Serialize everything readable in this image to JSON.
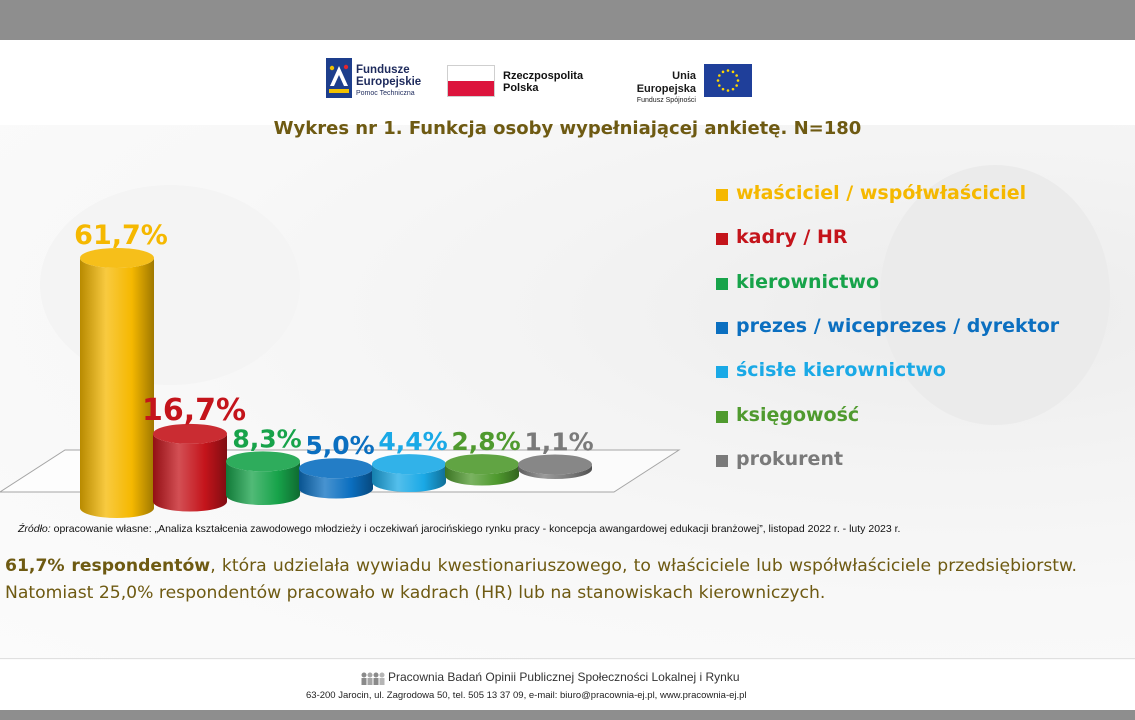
{
  "logos": {
    "fe": [
      "Fundusze",
      "Europejskie",
      "Pomoc Techniczna"
    ],
    "pl": [
      "Rzeczpospolita",
      "Polska"
    ],
    "eu": [
      "Unia Europejska",
      "Fundusz Spójności"
    ]
  },
  "chart_data": {
    "type": "bar",
    "title": "Wykres nr 1. Funkcja osoby wypełniającej ankietę. N=180",
    "categories": [
      "właściciel / współwłaściciel",
      "kadry / HR",
      "kierownictwo",
      "prezes / wiceprezes / dyrektor",
      "ścisłe kierownictwo",
      "księgowość",
      "prokurent"
    ],
    "values": [
      61.7,
      16.7,
      8.3,
      5.0,
      4.4,
      2.8,
      1.1
    ],
    "data_labels": [
      "61,7%",
      "16,7%",
      "8,3%",
      "5,0%",
      "4,4%",
      "2,8%",
      "1,1%"
    ],
    "colors": [
      "#f5b800",
      "#c4141b",
      "#17a34a",
      "#0b6fc0",
      "#1aa9e6",
      "#4f9a2e",
      "#7a7a7a"
    ],
    "legend_position": "right",
    "grid": false
  },
  "source": {
    "label": "Źródło:",
    "text": " opracowanie własne: „Analiza kształcenia zawodowego młodzieży i oczekiwań jarocińskiego rynku pracy - koncepcja awangardowej edukacji branżowej”, listopad 2022 r. - luty 2023 r."
  },
  "summary": {
    "bold": "61,7% respondentów",
    "text": ", która udzielała wywiadu kwestionariuszowego, to właściciele lub współwłaściciele przedsiębiorstw. Natomiast 25,0% respondentów pracowało w kadrach (HR) lub na stanowiskach kierowniczych."
  },
  "footer": {
    "org": "Pracownia Badań Opinii Publicznej Społeczności Lokalnej i Rynku",
    "address": "63-200 Jarocin, ul. Zagrodowa 50, tel. 505 13 37 09, e-mail: biuro@pracownia-ej.pl, www.pracownia-ej.pl"
  }
}
